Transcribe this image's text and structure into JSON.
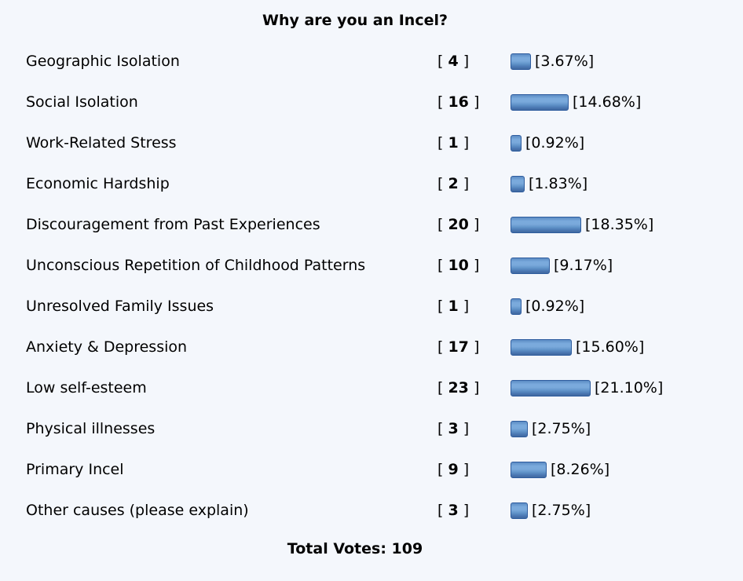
{
  "page": {
    "background_color": "#F4F7FC",
    "text_color": "#000000"
  },
  "poll": {
    "title": "Why are you an Incel?",
    "bracket_open": "[ ",
    "bracket_close": " ]",
    "total_votes_label": "Total Votes: 109",
    "bar_style": {
      "border_color": "#2E5C9E",
      "gradient": [
        "#5C8CC4",
        "#7BABDD",
        "#7AA9DB",
        "#6598CD",
        "#4A77B2",
        "#40699F"
      ]
    },
    "options": [
      {
        "label": "Geographic Isolation",
        "votes": 4,
        "pct": 3.67,
        "pct_label": "[3.67%]"
      },
      {
        "label": "Social Isolation",
        "votes": 16,
        "pct": 14.68,
        "pct_label": "[14.68%]"
      },
      {
        "label": "Work-Related Stress",
        "votes": 1,
        "pct": 0.92,
        "pct_label": "[0.92%]"
      },
      {
        "label": "Economic Hardship",
        "votes": 2,
        "pct": 1.83,
        "pct_label": "[1.83%]"
      },
      {
        "label": "Discouragement from Past Experiences",
        "votes": 20,
        "pct": 18.35,
        "pct_label": "[18.35%]"
      },
      {
        "label": "Unconscious Repetition of Childhood Patterns",
        "votes": 10,
        "pct": 9.17,
        "pct_label": "[9.17%]"
      },
      {
        "label": "Unresolved Family Issues",
        "votes": 1,
        "pct": 0.92,
        "pct_label": "[0.92%]"
      },
      {
        "label": "Anxiety & Depression",
        "votes": 17,
        "pct": 15.6,
        "pct_label": "[15.60%]"
      },
      {
        "label": "Low self-esteem",
        "votes": 23,
        "pct": 21.1,
        "pct_label": "[21.10%]"
      },
      {
        "label": "Physical illnesses",
        "votes": 3,
        "pct": 2.75,
        "pct_label": "[2.75%]"
      },
      {
        "label": "Primary Incel",
        "votes": 9,
        "pct": 8.26,
        "pct_label": "[8.26%]"
      },
      {
        "label": "Other causes (please explain)",
        "votes": 3,
        "pct": 2.75,
        "pct_label": "[2.75%]"
      }
    ]
  },
  "chart_data": {
    "type": "bar",
    "orientation": "horizontal",
    "title": "Why are you an Incel?",
    "categories": [
      "Geographic Isolation",
      "Social Isolation",
      "Work-Related Stress",
      "Economic Hardship",
      "Discouragement from Past Experiences",
      "Unconscious Repetition of Childhood Patterns",
      "Unresolved Family Issues",
      "Anxiety & Depression",
      "Low self-esteem",
      "Physical illnesses",
      "Primary Incel",
      "Other causes (please explain)"
    ],
    "series": [
      {
        "name": "Votes",
        "values": [
          4,
          16,
          1,
          2,
          20,
          10,
          1,
          17,
          23,
          3,
          9,
          3
        ]
      },
      {
        "name": "Percent",
        "values": [
          3.67,
          14.68,
          0.92,
          1.83,
          18.35,
          9.17,
          0.92,
          15.6,
          21.1,
          2.75,
          8.26,
          2.75
        ]
      }
    ],
    "total_votes": 109,
    "bar_color": "#6699CC",
    "grid": false,
    "legend": false
  }
}
